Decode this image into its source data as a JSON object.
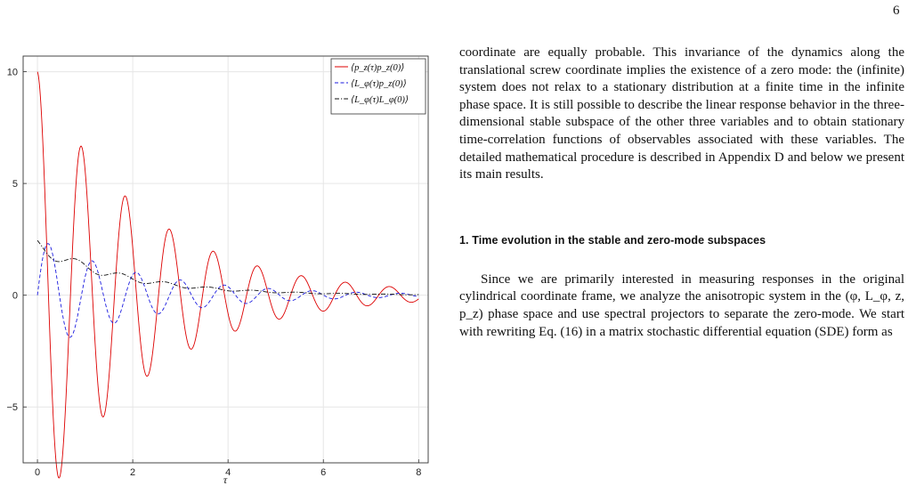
{
  "page": {
    "number": "6"
  },
  "chart_data": {
    "type": "line",
    "title": "",
    "xlabel": "τ",
    "ylabel": "",
    "xlim": [
      -0.3,
      8.2
    ],
    "ylim": [
      -7.5,
      10.7
    ],
    "x_ticks": [
      "0",
      "2",
      "4",
      "6",
      "8"
    ],
    "y_ticks": [
      "10",
      "5",
      "0",
      "−5"
    ],
    "grid": true,
    "legend_position": "top-right",
    "series": [
      {
        "name": "⟨p_z(τ)p_z(0)⟩",
        "color": "#dd0000",
        "style": "solid",
        "model": {
          "amplitude": 10.0,
          "offset": 0.0,
          "decay": 0.44,
          "omega": 6.8,
          "phase": 0.0,
          "form": "cos"
        }
      },
      {
        "name": "⟨L_φ(τ)p_z(0)⟩",
        "color": "#1a1adf",
        "style": "dashed",
        "model": {
          "amplitude": 2.55,
          "offset": 0.0,
          "decay": 0.44,
          "omega": 6.8,
          "phase": 0.0,
          "form": "sin"
        }
      },
      {
        "name": "⟨L_φ(τ)L_φ(0)⟩",
        "color": "#111111",
        "style": "dashdot",
        "model": {
          "amplitude": 0.3,
          "offset": 2.2,
          "decay": 0.44,
          "omega": 6.8,
          "phase": 0.0,
          "form": "mixed"
        }
      }
    ]
  },
  "text": {
    "paragraph_1": "coordinate are equally probable. This invariance of the dynamics along the translational screw coordinate implies the existence of a zero mode: the (infinite) system does not relax to a stationary distribution at a finite time in the infinite phase space. It is still possible to describe the linear response behavior in the three-dimensional stable subspace of the other three variables and to obtain stationary time-correlation functions of observables associated with these variables. The detailed mathematical procedure is described in Appendix D and below we present its main results.",
    "section_heading": "1.   Time evolution in the stable and zero-mode subspaces",
    "paragraph_2": "Since we are primarily interested in measuring responses in the original cylindrical coordinate frame, we analyze the anisotropic system in the (φ, L_φ, z, p_z) phase space and use spectral projectors to separate the zero-mode. We start with rewriting Eq. (16) in a matrix stochastic differential equation (SDE) form as"
  }
}
